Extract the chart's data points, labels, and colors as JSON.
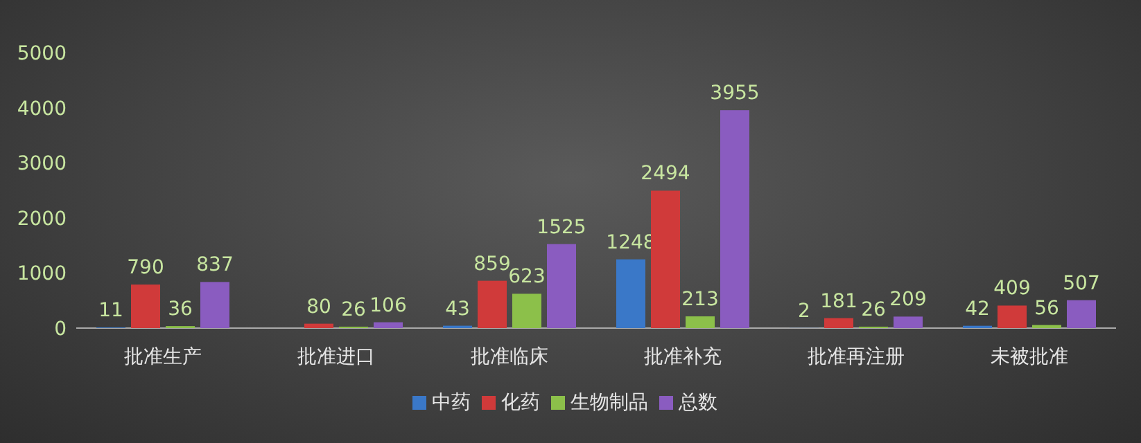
{
  "chart_data": {
    "type": "bar",
    "categories": [
      "批准生产",
      "批准进口",
      "批准临床",
      "批准补充",
      "批准再注册",
      "未被批准"
    ],
    "series": [
      {
        "name": "中药",
        "color": "#3a78c8",
        "values": [
          11,
          null,
          43,
          1248,
          2,
          42
        ]
      },
      {
        "name": "化药",
        "color": "#d03a3a",
        "values": [
          790,
          80,
          859,
          2494,
          181,
          409
        ]
      },
      {
        "name": "生物制品",
        "color": "#8cc04a",
        "values": [
          36,
          26,
          623,
          213,
          26,
          56
        ]
      },
      {
        "name": "总数",
        "color": "#8a5cc0",
        "values": [
          837,
          106,
          1525,
          3955,
          209,
          507
        ]
      }
    ],
    "ylim": [
      0,
      5000
    ],
    "yticks": [
      0,
      1000,
      2000,
      3000,
      4000,
      5000
    ],
    "data_labels": true,
    "legend": "bottom",
    "grid": false
  }
}
